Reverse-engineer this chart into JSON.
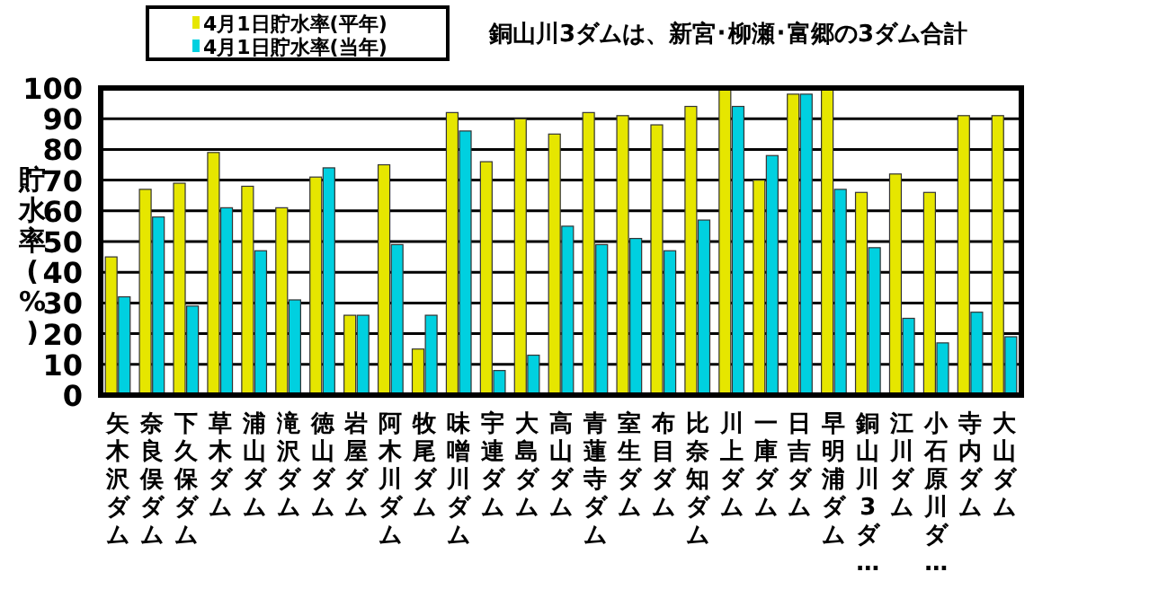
{
  "chart_data": {
    "type": "bar",
    "title": "銅山川3ダムは、新宮･柳瀬･富郷の3ダム合計",
    "ylabel": "貯水率(%)",
    "categories": [
      "矢木沢ダム",
      "奈良俣ダム",
      "下久保ダム",
      "草木ダム",
      "浦山ダム",
      "滝沢ダム",
      "徳山ダム",
      "岩屋ダム",
      "阿木川ダム",
      "牧尾ダム",
      "味噌川ダム",
      "宇連ダム",
      "大島ダム",
      "高山ダム",
      "青蓮寺ダム",
      "室生ダム",
      "布目ダム",
      "比奈知ダム",
      "川上ダム",
      "一庫ダム",
      "日吉ダム",
      "早明浦ダム",
      "銅山川3ダ…",
      "江川ダム",
      "小石原川ダ…",
      "寺内ダム",
      "大山ダム"
    ],
    "series": [
      {
        "name": "4月1日貯水率(平年)",
        "color": "#e6e600",
        "values": [
          45,
          67,
          69,
          79,
          68,
          61,
          71,
          26,
          75,
          15,
          92,
          76,
          90,
          85,
          92,
          91,
          88,
          94,
          100,
          70,
          98,
          100,
          66,
          72,
          66,
          91,
          91
        ]
      },
      {
        "name": "4月1日貯水率(当年)",
        "color": "#00d0e0",
        "values": [
          32,
          58,
          29,
          61,
          47,
          31,
          74,
          26,
          49,
          26,
          86,
          8,
          13,
          55,
          49,
          51,
          47,
          57,
          94,
          78,
          98,
          67,
          48,
          25,
          17,
          27,
          19
        ]
      }
    ],
    "ylim": [
      0,
      100
    ],
    "yticks": [
      0,
      10,
      20,
      30,
      40,
      50,
      60,
      70,
      80,
      90,
      100
    ],
    "grid": "y",
    "legend": "top left"
  }
}
